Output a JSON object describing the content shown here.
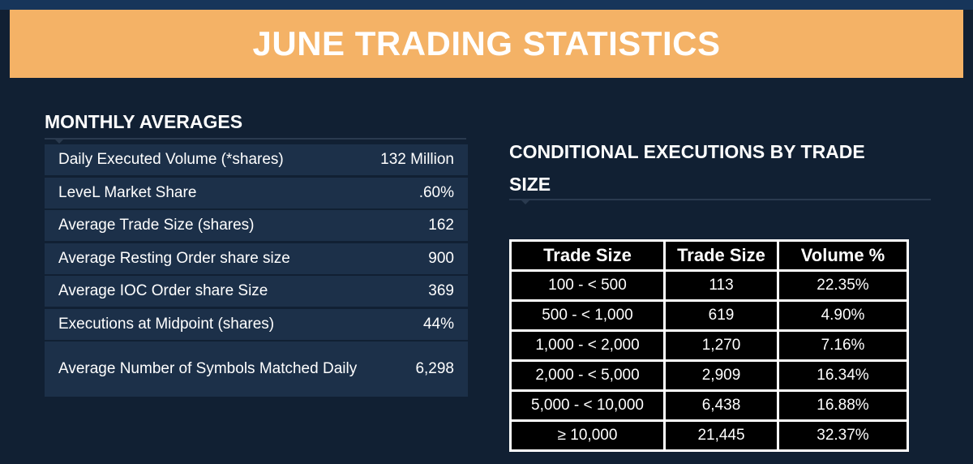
{
  "banner": {
    "title": "JUNE TRADING STATISTICS"
  },
  "monthly": {
    "heading": "MONTHLY AVERAGES",
    "rows": [
      {
        "label": "Daily Executed Volume (*shares)",
        "value": "132 Million"
      },
      {
        "label": "LeveL Market Share",
        "value": ".60%"
      },
      {
        "label": "Average Trade Size (shares)",
        "value": "162"
      },
      {
        "label": "Average Resting Order share size",
        "value": "900"
      },
      {
        "label": "Average IOC Order share Size",
        "value": "369"
      },
      {
        "label": "Executions at Midpoint (shares)",
        "value": "44%"
      },
      {
        "label": "Average Number of Symbols Matched Daily",
        "value": "6,298"
      }
    ]
  },
  "conditional": {
    "heading_line1": "CONDITIONAL EXECUTIONS BY TRADE",
    "heading_line2": "SIZE",
    "headers": [
      "Trade Size",
      "Trade Size",
      "Volume %"
    ],
    "rows": [
      [
        "100 - < 500",
        "113",
        "22.35%"
      ],
      [
        "500 - < 1,000",
        "619",
        "4.90%"
      ],
      [
        "1,000 - < 2,000",
        "1,270",
        "7.16%"
      ],
      [
        "2,000 - < 5,000",
        "2,909",
        "16.34%"
      ],
      [
        "5,000 - < 10,000",
        "6,438",
        "16.88%"
      ],
      [
        "≥ 10,000",
        "21,445",
        "32.37%"
      ]
    ]
  },
  "colors": {
    "background": "#112033",
    "banner": "#f4b266",
    "row_fill": "#1c3049",
    "table_fill": "#000000"
  }
}
